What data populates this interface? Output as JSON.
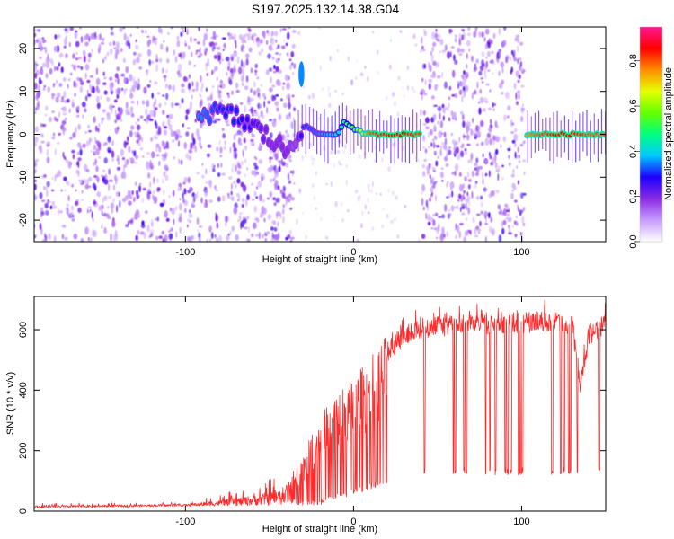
{
  "figure": {
    "title": "S197.2025.132.14.38.G04"
  },
  "chart_data": [
    {
      "type": "heatmap",
      "name": "spectrogram",
      "xlabel": "Height of straight line (km)",
      "ylabel": "Frequency (Hz)",
      "xlim": [
        -190,
        150
      ],
      "ylim": [
        -25,
        25
      ],
      "x_ticks": [
        -100,
        0,
        100
      ],
      "x_tick_labels": [
        "-100",
        "0",
        "100"
      ],
      "y_ticks": [
        -20,
        -10,
        0,
        10,
        20
      ],
      "y_tick_labels": [
        "-20",
        "-10",
        "0",
        "10",
        "20"
      ],
      "colorbar": {
        "label": "Normalized spectral amplitude",
        "range": [
          0,
          0.95
        ],
        "ticks": [
          0.0,
          0.2,
          0.4,
          0.6,
          0.8
        ],
        "tick_labels": [
          "0.0",
          "0.2",
          "0.4",
          "0.6",
          "0.8"
        ],
        "colors": [
          "#ffffff",
          "#c79cff",
          "#8a2be2",
          "#1e00ff",
          "#00c8ff",
          "#00ff80",
          "#66ff00",
          "#e6ff00",
          "#ff8c00",
          "#ff0000",
          "#ff1493"
        ]
      },
      "noise_regions": [
        [
          -190,
          -35
        ],
        [
          40,
          102
        ]
      ],
      "blank_regions": [
        [
          -35,
          -30
        ],
        [
          102,
          103
        ]
      ],
      "signal_track": {
        "x": [
          -90,
          -80,
          -70,
          -60,
          -50,
          -40,
          -35,
          -30,
          -20,
          -10,
          -5,
          0,
          10,
          20,
          30,
          40,
          103,
          110,
          120,
          130,
          140,
          150
        ],
        "y": [
          5,
          5,
          4,
          2,
          -1,
          -4,
          -1,
          2,
          0,
          0,
          3,
          1,
          0,
          0,
          0,
          0,
          0,
          0,
          0,
          0,
          0,
          0
        ],
        "amplitude": [
          0.35,
          0.3,
          0.3,
          0.25,
          0.2,
          0.2,
          0.15,
          0.3,
          0.35,
          0.4,
          0.5,
          0.55,
          0.8,
          0.85,
          0.85,
          0.8,
          0.75,
          0.8,
          0.85,
          0.85,
          0.8,
          0.8
        ]
      },
      "outlier_blob": {
        "x": -31,
        "y": [
          11,
          17
        ],
        "amplitude": 0.35
      }
    },
    {
      "type": "line",
      "name": "snr",
      "xlabel": "Height of straight line (km)",
      "ylabel": "SNR (10 * v/v)",
      "xlim": [
        -190,
        150
      ],
      "ylim": [
        0,
        710
      ],
      "x_ticks": [
        -100,
        0,
        100
      ],
      "x_tick_labels": [
        "-100",
        "0",
        "100"
      ],
      "y_ticks": [
        0,
        200,
        400,
        600
      ],
      "y_tick_labels": [
        "0",
        "200",
        "400",
        "600"
      ],
      "color": "#ff2a2a",
      "envelope": {
        "x": [
          -190,
          -100,
          -80,
          -60,
          -40,
          -30,
          -20,
          -10,
          0,
          10,
          20,
          30,
          40,
          60,
          80,
          100,
          120,
          130,
          135,
          140,
          150
        ],
        "y": [
          20,
          25,
          40,
          60,
          90,
          180,
          300,
          380,
          420,
          490,
          560,
          610,
          640,
          650,
          650,
          660,
          660,
          650,
          450,
          620,
          650
        ]
      },
      "drop_level": {
        "x": [
          -190,
          -40,
          -20,
          20,
          40,
          150
        ],
        "y": [
          10,
          20,
          20,
          90,
          120,
          120
        ]
      }
    }
  ]
}
